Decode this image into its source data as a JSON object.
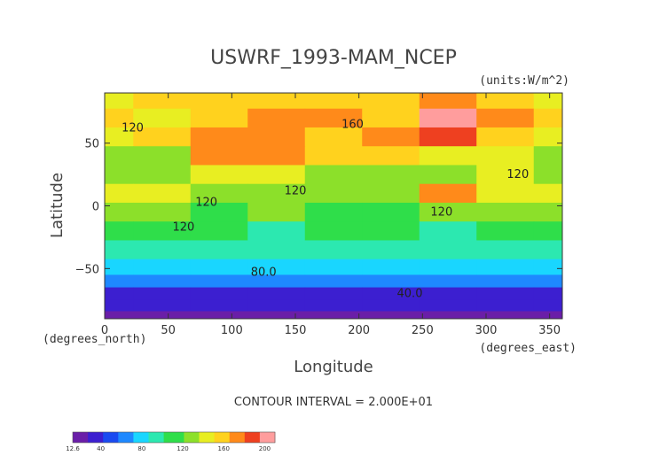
{
  "chart_data": {
    "type": "heatmap",
    "title": "USWRF_1993-MAM_NCEP",
    "units_label": "(units:W/m^2)",
    "xlabel": "Longitude",
    "ylabel": "Latitude",
    "x_units_label": "(degrees_east)",
    "y_units_label": "(degrees_north)",
    "xlim": [
      0,
      360
    ],
    "ylim": [
      -90,
      90
    ],
    "x_ticks": [
      0,
      50,
      100,
      150,
      200,
      250,
      300,
      350
    ],
    "y_ticks": [
      -50,
      0,
      50
    ],
    "x_tick_labels": [
      "0",
      "50",
      "100",
      "150",
      "200",
      "250",
      "300",
      "350"
    ],
    "y_tick_labels": [
      "−50",
      "0",
      "50"
    ],
    "contour_interval_text": "CONTOUR INTERVAL = 2.000E+01",
    "contour_labels": [
      {
        "text": "120",
        "lon": 22,
        "lat": 62
      },
      {
        "text": "160",
        "lon": 195,
        "lat": 65
      },
      {
        "text": "120",
        "lon": 150,
        "lat": 12
      },
      {
        "text": "120",
        "lon": 80,
        "lat": 3
      },
      {
        "text": "120",
        "lon": 62,
        "lat": -17
      },
      {
        "text": "120",
        "lon": 265,
        "lat": -5
      },
      {
        "text": "120",
        "lon": 325,
        "lat": 25
      },
      {
        "text": "80.0",
        "lon": 125,
        "lat": -53
      },
      {
        "text": "40.0",
        "lon": 240,
        "lat": -70
      }
    ],
    "colorbar": {
      "min": 12.6,
      "max": 210,
      "tick_labels": [
        "12.6",
        "40",
        "80",
        "120",
        "160",
        "200"
      ],
      "tick_values": [
        12.6,
        40,
        80,
        120,
        160,
        200
      ]
    },
    "grid": false,
    "legend": "bottom-left colorbar",
    "colors": {
      "scale": [
        "#6a1ea8",
        "#3c1fd0",
        "#1a4af0",
        "#1e88ff",
        "#19d6ff",
        "#2ce8b0",
        "#2fde4a",
        "#8ce02a",
        "#e8ee22",
        "#ffd21e",
        "#ff8a1a",
        "#ee4020",
        "#ff9d9d"
      ],
      "contour": "#222222"
    },
    "value_field": {
      "lat_rows": [
        85,
        70,
        55,
        40,
        25,
        10,
        -5,
        -20,
        -35,
        -50,
        -60,
        -70,
        -80,
        -88
      ],
      "lon_cols": [
        0,
        45,
        90,
        135,
        180,
        225,
        270,
        315,
        360
      ],
      "values": [
        [
          140,
          150,
          160,
          160,
          160,
          160,
          165,
          150,
          140
        ],
        [
          150,
          145,
          160,
          165,
          165,
          160,
          195,
          175,
          150
        ],
        [
          135,
          150,
          175,
          175,
          150,
          165,
          185,
          160,
          135
        ],
        [
          130,
          130,
          165,
          165,
          150,
          150,
          145,
          140,
          130
        ],
        [
          125,
          120,
          145,
          140,
          130,
          130,
          125,
          135,
          125
        ],
        [
          140,
          140,
          120,
          130,
          120,
          125,
          165,
          145,
          140
        ],
        [
          130,
          120,
          115,
          120,
          115,
          110,
          120,
          120,
          130
        ],
        [
          115,
          110,
          110,
          100,
          110,
          110,
          100,
          110,
          115
        ],
        [
          100,
          100,
          95,
          95,
          95,
          95,
          95,
          95,
          100
        ],
        [
          80,
          80,
          80,
          80,
          80,
          80,
          85,
          80,
          80
        ],
        [
          60,
          60,
          60,
          60,
          60,
          60,
          60,
          60,
          60
        ],
        [
          40,
          40,
          40,
          40,
          40,
          40,
          40,
          40,
          40
        ],
        [
          30,
          30,
          30,
          30,
          30,
          30,
          30,
          30,
          30
        ],
        [
          15,
          15,
          15,
          15,
          15,
          15,
          15,
          15,
          15
        ]
      ]
    }
  }
}
